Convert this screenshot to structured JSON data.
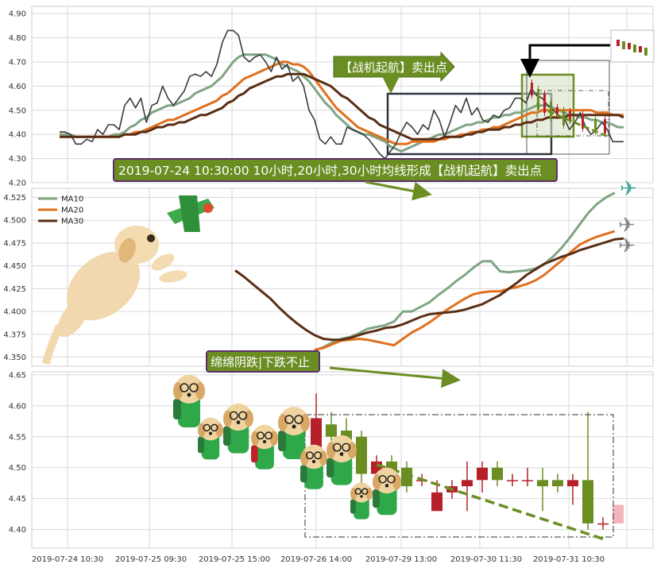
{
  "colors": {
    "ma10": "#7fa584",
    "ma20": "#e0701e",
    "ma30": "#5a2e14",
    "price": "#3a3a3a",
    "up": "#b5202a",
    "down": "#6b8e23",
    "banner": "#6b8e23",
    "banner_dark": "#5b7a1f",
    "grid": "#d9d9d9"
  },
  "annotations": {
    "sell_signal_arrow": "【战机起航】卖出点",
    "main_caption": "2019-07-24 10:30:00 10小时,20小时,30小时均线形成【战机起航】卖出点",
    "bottom_caption": "绵绵阴跌|下跌不止"
  },
  "chart_data": [
    {
      "id": "price-panel",
      "type": "line",
      "ylim": [
        4.2,
        4.93
      ],
      "yticks": [
        4.2,
        4.3,
        4.4,
        4.5,
        4.6,
        4.7,
        4.8,
        4.9
      ],
      "series": [
        {
          "key": "price",
          "values": [
            4.41,
            4.41,
            4.4,
            4.36,
            4.36,
            4.38,
            4.37,
            4.42,
            4.4,
            4.44,
            4.44,
            4.42,
            4.52,
            4.55,
            4.51,
            4.55,
            4.45,
            4.52,
            4.53,
            4.6,
            4.55,
            4.52,
            4.55,
            4.58,
            4.64,
            4.65,
            4.64,
            4.66,
            4.64,
            4.69,
            4.78,
            4.83,
            4.83,
            4.81,
            4.72,
            4.7,
            4.72,
            4.73,
            4.7,
            4.66,
            4.72,
            4.67,
            4.69,
            4.62,
            4.64,
            4.6,
            4.5,
            4.46,
            4.38,
            4.36,
            4.39,
            4.36,
            4.36,
            4.43,
            4.42,
            4.41,
            4.4,
            4.38,
            4.35,
            4.32,
            4.3,
            4.33,
            4.36,
            4.41,
            4.45,
            4.43,
            4.4,
            4.44,
            4.42,
            4.5,
            4.46,
            4.39,
            4.45,
            4.52,
            4.49,
            4.55,
            4.48,
            4.51,
            4.46,
            4.45,
            4.48,
            4.47,
            4.5,
            4.51,
            4.55,
            4.55,
            4.53,
            4.59,
            4.56,
            4.55,
            4.52,
            4.5,
            4.48,
            4.47,
            4.42,
            4.45,
            4.49,
            4.43,
            4.4,
            4.42,
            4.45,
            4.42,
            4.37,
            4.37,
            4.37
          ]
        },
        {
          "key": "ma10",
          "values": [
            4.4,
            4.4,
            4.4,
            4.39,
            4.39,
            4.39,
            4.39,
            4.39,
            4.39,
            4.39,
            4.4,
            4.4,
            4.41,
            4.43,
            4.44,
            4.46,
            4.47,
            4.49,
            4.5,
            4.51,
            4.52,
            4.52,
            4.53,
            4.54,
            4.55,
            4.57,
            4.58,
            4.59,
            4.6,
            4.62,
            4.64,
            4.67,
            4.7,
            4.72,
            4.73,
            4.73,
            4.73,
            4.73,
            4.73,
            4.72,
            4.71,
            4.69,
            4.68,
            4.67,
            4.66,
            4.64,
            4.62,
            4.59,
            4.56,
            4.53,
            4.51,
            4.48,
            4.46,
            4.44,
            4.42,
            4.41,
            4.4,
            4.4,
            4.39,
            4.38,
            4.37,
            4.35,
            4.34,
            4.33,
            4.34,
            4.35,
            4.36,
            4.37,
            4.38,
            4.39,
            4.4,
            4.4,
            4.41,
            4.42,
            4.43,
            4.44,
            4.44,
            4.45,
            4.45,
            4.46,
            4.47,
            4.47,
            4.48,
            4.48,
            4.49,
            4.49,
            4.5,
            4.51,
            4.52,
            4.52,
            4.52,
            4.51,
            4.5,
            4.49,
            4.48,
            4.48,
            4.47,
            4.47,
            4.46,
            4.46,
            4.45,
            4.45,
            4.44,
            4.43,
            4.43
          ]
        },
        {
          "key": "ma20",
          "values": [
            4.39,
            4.39,
            4.39,
            4.39,
            4.39,
            4.39,
            4.39,
            4.39,
            4.39,
            4.39,
            4.39,
            4.39,
            4.4,
            4.4,
            4.41,
            4.41,
            4.42,
            4.43,
            4.44,
            4.45,
            4.46,
            4.46,
            4.47,
            4.48,
            4.49,
            4.5,
            4.51,
            4.52,
            4.53,
            4.54,
            4.56,
            4.57,
            4.59,
            4.61,
            4.63,
            4.64,
            4.65,
            4.66,
            4.67,
            4.68,
            4.69,
            4.7,
            4.7,
            4.69,
            4.69,
            4.68,
            4.66,
            4.63,
            4.6,
            4.57,
            4.54,
            4.51,
            4.49,
            4.47,
            4.45,
            4.43,
            4.42,
            4.41,
            4.4,
            4.39,
            4.38,
            4.37,
            4.36,
            4.36,
            4.36,
            4.37,
            4.37,
            4.37,
            4.37,
            4.37,
            4.38,
            4.38,
            4.39,
            4.39,
            4.4,
            4.4,
            4.41,
            4.41,
            4.42,
            4.42,
            4.43,
            4.43,
            4.44,
            4.45,
            4.46,
            4.47,
            4.48,
            4.49,
            4.49,
            4.5,
            4.5,
            4.5,
            4.5,
            4.5,
            4.5,
            4.5,
            4.5,
            4.5,
            4.5,
            4.49,
            4.49,
            4.49,
            4.48,
            4.48,
            4.48
          ]
        },
        {
          "key": "ma30",
          "values": [
            4.39,
            4.39,
            4.39,
            4.39,
            4.39,
            4.39,
            4.39,
            4.39,
            4.39,
            4.39,
            4.39,
            4.39,
            4.4,
            4.4,
            4.4,
            4.41,
            4.41,
            4.42,
            4.43,
            4.43,
            4.44,
            4.44,
            4.45,
            4.45,
            4.46,
            4.47,
            4.48,
            4.48,
            4.49,
            4.5,
            4.51,
            4.53,
            4.54,
            4.56,
            4.57,
            4.59,
            4.6,
            4.61,
            4.62,
            4.63,
            4.64,
            4.64,
            4.65,
            4.65,
            4.65,
            4.65,
            4.64,
            4.63,
            4.62,
            4.61,
            4.6,
            4.58,
            4.56,
            4.55,
            4.53,
            4.51,
            4.49,
            4.47,
            4.46,
            4.44,
            4.43,
            4.42,
            4.41,
            4.4,
            4.39,
            4.38,
            4.38,
            4.38,
            4.38,
            4.38,
            4.38,
            4.39,
            4.39,
            4.39,
            4.39,
            4.4,
            4.4,
            4.41,
            4.41,
            4.42,
            4.42,
            4.42,
            4.43,
            4.43,
            4.44,
            4.44,
            4.45,
            4.45,
            4.46,
            4.46,
            4.47,
            4.47,
            4.47,
            4.47,
            4.48,
            4.48,
            4.48,
            4.48,
            4.48,
            4.48,
            4.48,
            4.48,
            4.48,
            4.48,
            4.47
          ]
        }
      ]
    },
    {
      "id": "ma-panel",
      "type": "line",
      "ylim": [
        4.34,
        4.535
      ],
      "yticks": [
        4.35,
        4.375,
        4.4,
        4.425,
        4.45,
        4.475,
        4.5,
        4.525
      ],
      "legend": [
        {
          "key": "ma10",
          "name": "MA10"
        },
        {
          "key": "ma20",
          "name": "MA20"
        },
        {
          "key": "ma30",
          "name": "MA30"
        }
      ],
      "legend_position": "top-left",
      "series": [
        {
          "key": "ma10",
          "start": 9,
          "values": [
            4.357,
            4.361,
            4.366,
            4.37,
            4.372,
            4.376,
            4.381,
            4.383,
            4.385,
            4.389,
            4.4,
            4.4,
            4.405,
            4.41,
            4.418,
            4.425,
            4.433,
            4.44,
            4.448,
            4.455,
            4.455,
            4.444,
            4.443,
            4.444,
            4.445,
            4.447,
            4.452,
            4.46,
            4.47,
            4.482,
            4.495,
            4.508,
            4.518,
            4.525,
            4.53
          ]
        },
        {
          "key": "ma20",
          "start": 9,
          "values": [
            4.358,
            4.36,
            4.364,
            4.368,
            4.369,
            4.37,
            4.369,
            4.367,
            4.365,
            4.363,
            4.37,
            4.377,
            4.382,
            4.388,
            4.395,
            4.402,
            4.408,
            4.414,
            4.419,
            4.421,
            4.422,
            4.422,
            4.425,
            4.427,
            4.43,
            4.434,
            4.44,
            4.448,
            4.456,
            4.465,
            4.473,
            4.478,
            4.482,
            4.485,
            4.488
          ]
        },
        {
          "key": "ma30",
          "start": 0,
          "values": [
            4.445,
            4.438,
            4.43,
            4.422,
            4.414,
            4.404,
            4.395,
            4.387,
            4.38,
            4.374,
            4.37,
            4.369,
            4.369,
            4.371,
            4.374,
            4.377,
            4.379,
            4.382,
            4.383,
            4.386,
            4.39,
            4.394,
            4.397,
            4.398,
            4.399,
            4.4,
            4.402,
            4.405,
            4.408,
            4.413,
            4.418,
            4.425,
            4.432,
            4.44,
            4.446,
            4.452,
            4.456,
            4.46,
            4.463,
            4.467,
            4.47,
            4.473,
            4.476,
            4.479,
            4.48
          ]
        }
      ]
    },
    {
      "id": "candle-panel",
      "type": "candlestick",
      "ylim": [
        4.37,
        4.655
      ],
      "yticks": [
        4.4,
        4.45,
        4.5,
        4.55,
        4.6,
        4.65
      ],
      "categories": [
        "2019-07-24 10:30",
        "2019-07-25 09:30",
        "2019-07-25 15:00",
        "2019-07-26 14:00",
        "2019-07-29 13:00",
        "2019-07-30 11:30",
        "2019-07-31 10:30"
      ],
      "candles": [
        {
          "o": 4.52,
          "c": 4.58,
          "h": 4.62,
          "l": 4.5
        },
        {
          "o": 4.57,
          "c": 4.55,
          "h": 4.59,
          "l": 4.52
        },
        {
          "o": 4.56,
          "c": 4.53,
          "h": 4.58,
          "l": 4.51
        },
        {
          "o": 4.55,
          "c": 4.49,
          "h": 4.56,
          "l": 4.47
        },
        {
          "o": 4.49,
          "c": 4.51,
          "h": 4.52,
          "l": 4.48
        },
        {
          "o": 4.51,
          "c": 4.47,
          "h": 4.52,
          "l": 4.43
        },
        {
          "o": 4.5,
          "c": 4.47,
          "h": 4.51,
          "l": 4.46
        },
        {
          "o": 4.48,
          "c": 4.48,
          "h": 4.49,
          "l": 4.47
        },
        {
          "o": 4.43,
          "c": 4.46,
          "h": 4.48,
          "l": 4.43
        },
        {
          "o": 4.46,
          "c": 4.47,
          "h": 4.48,
          "l": 4.45
        },
        {
          "o": 4.47,
          "c": 4.48,
          "h": 4.51,
          "l": 4.43
        },
        {
          "o": 4.48,
          "c": 4.5,
          "h": 4.51,
          "l": 4.46
        },
        {
          "o": 4.5,
          "c": 4.48,
          "h": 4.51,
          "l": 4.47
        },
        {
          "o": 4.48,
          "c": 4.48,
          "h": 4.49,
          "l": 4.47
        },
        {
          "o": 4.48,
          "c": 4.48,
          "h": 4.5,
          "l": 4.47
        },
        {
          "o": 4.48,
          "c": 4.47,
          "h": 4.5,
          "l": 4.43
        },
        {
          "o": 4.48,
          "c": 4.47,
          "h": 4.49,
          "l": 4.46
        },
        {
          "o": 4.47,
          "c": 4.48,
          "h": 4.49,
          "l": 4.44
        },
        {
          "o": 4.48,
          "c": 4.41,
          "h": 4.59,
          "l": 4.4
        },
        {
          "o": 4.41,
          "c": 4.41,
          "h": 4.42,
          "l": 4.4
        },
        {
          "o": 4.41,
          "c": 4.44,
          "h": 4.44,
          "l": 4.41
        }
      ],
      "trend_dash": {
        "from": 4.505,
        "to": 4.385
      }
    }
  ]
}
